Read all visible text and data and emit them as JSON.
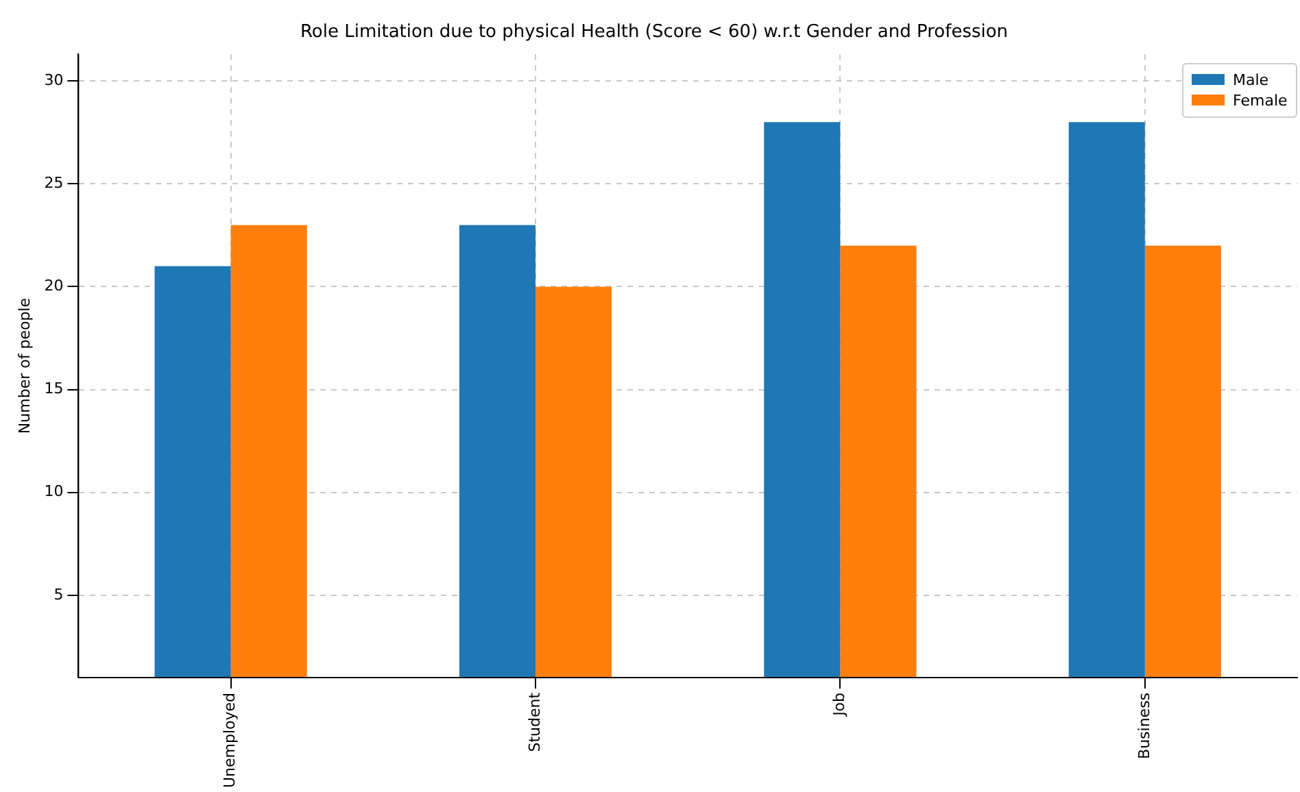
{
  "chart_data": {
    "type": "bar",
    "title": "Role Limitation due to physical Health (Score < 60) w.r.t Gender and Profession",
    "ylabel": "Number of people",
    "categories": [
      "Unemployed",
      "Student",
      "Job",
      "Business"
    ],
    "series": [
      {
        "name": "Male",
        "color": "#1f77b4",
        "values": [
          21,
          23,
          28,
          28
        ]
      },
      {
        "name": "Female",
        "color": "#ff7f0e",
        "values": [
          23,
          20,
          22,
          22
        ]
      }
    ],
    "ylim": [
      1,
      31.3
    ],
    "yticks": [
      5,
      10,
      15,
      20,
      25,
      30
    ],
    "grid": true,
    "legend": "top right"
  }
}
